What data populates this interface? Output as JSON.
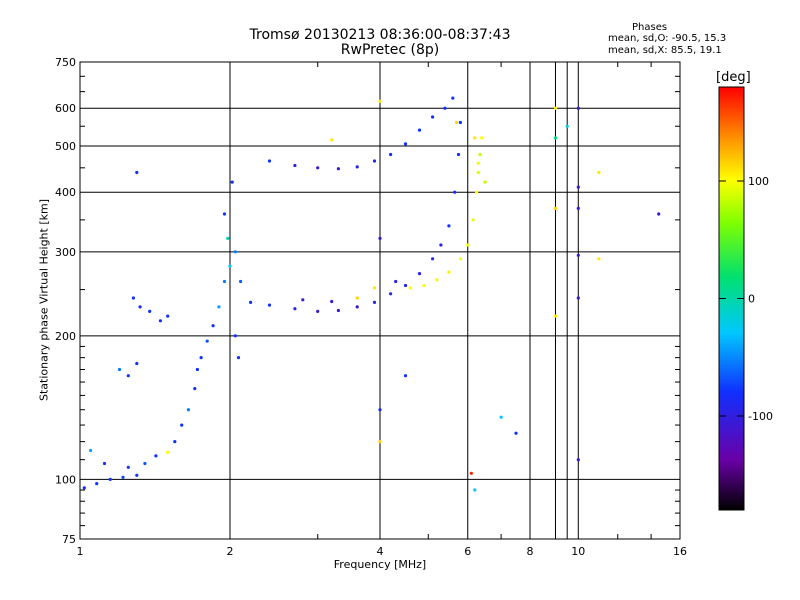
{
  "chart_data": {
    "type": "scatter",
    "title": "Tromsø 20130213 08:36:00-08:37:43",
    "subtitle": "RwPretec (8p)",
    "xlabel": "Frequency [MHz]",
    "ylabel": "Stationary phase Virtual Height [km]",
    "x_scale": "log",
    "y_scale": "log",
    "xlim": [
      1,
      16
    ],
    "ylim": [
      75,
      750
    ],
    "x_ticks": [
      "1",
      "2",
      "4",
      "6",
      "8",
      "10",
      "16"
    ],
    "y_ticks": [
      "750",
      "600",
      "500",
      "400",
      "300",
      "200",
      "100",
      "75"
    ],
    "grid": true,
    "phase_stats": {
      "heading": "Phases",
      "o_line": "mean, sd,O: -90.5, 15.3",
      "x_line": "mean, sd,X:  85.5, 19.1"
    },
    "colorbar": {
      "label": "[deg]",
      "ticks": [
        "100",
        "0",
        "-100"
      ],
      "range": [
        -180,
        180
      ]
    },
    "series": [
      {
        "points": [
          [
            1.02,
            96,
            -100
          ],
          [
            1.08,
            98,
            -100
          ],
          [
            1.15,
            100,
            -100
          ],
          [
            1.22,
            101,
            -95
          ],
          [
            1.3,
            102,
            -100
          ],
          [
            1.05,
            115,
            -70
          ],
          [
            1.12,
            108,
            -100
          ],
          [
            1.25,
            106,
            -100
          ],
          [
            1.35,
            108,
            -90
          ],
          [
            1.42,
            112,
            -100
          ],
          [
            1.5,
            114,
            90
          ],
          [
            1.55,
            120,
            -100
          ],
          [
            1.6,
            130,
            -100
          ],
          [
            1.65,
            140,
            -80
          ],
          [
            1.7,
            155,
            -100
          ],
          [
            1.72,
            170,
            -100
          ],
          [
            1.75,
            180,
            -100
          ],
          [
            1.8,
            195,
            -90
          ],
          [
            1.85,
            210,
            -100
          ],
          [
            1.9,
            230,
            -70
          ],
          [
            1.95,
            260,
            -80
          ],
          [
            2.0,
            280,
            -60
          ],
          [
            1.98,
            320,
            -40
          ],
          [
            1.95,
            360,
            -100
          ],
          [
            2.02,
            420,
            -100
          ],
          [
            2.05,
            300,
            -80
          ],
          [
            2.05,
            200,
            -100
          ],
          [
            2.08,
            180,
            -100
          ],
          [
            2.1,
            260,
            -90
          ],
          [
            1.28,
            240,
            -100
          ],
          [
            1.32,
            230,
            -100
          ],
          [
            1.38,
            225,
            -100
          ],
          [
            1.45,
            215,
            -100
          ],
          [
            1.5,
            220,
            -100
          ],
          [
            1.2,
            170,
            -80
          ],
          [
            1.25,
            165,
            -100
          ],
          [
            1.3,
            175,
            -100
          ],
          [
            2.2,
            235,
            -100
          ],
          [
            2.4,
            232,
            -100
          ],
          [
            2.7,
            228,
            -110
          ],
          [
            3.0,
            225,
            -120
          ],
          [
            3.3,
            226,
            -120
          ],
          [
            3.6,
            230,
            -120
          ],
          [
            3.9,
            235,
            -110
          ],
          [
            4.2,
            245,
            -110
          ],
          [
            4.5,
            255,
            -110
          ],
          [
            4.8,
            270,
            -110
          ],
          [
            5.1,
            290,
            -110
          ],
          [
            5.3,
            310,
            -110
          ],
          [
            5.5,
            340,
            -100
          ],
          [
            5.65,
            400,
            -100
          ],
          [
            5.75,
            480,
            -100
          ],
          [
            5.8,
            560,
            -100
          ],
          [
            2.4,
            465,
            -100
          ],
          [
            2.7,
            455,
            -110
          ],
          [
            3.0,
            450,
            -120
          ],
          [
            3.3,
            448,
            -120
          ],
          [
            3.6,
            452,
            -110
          ],
          [
            3.9,
            465,
            -110
          ],
          [
            4.2,
            480,
            -100
          ],
          [
            4.5,
            505,
            -100
          ],
          [
            4.8,
            540,
            -100
          ],
          [
            5.1,
            575,
            -100
          ],
          [
            5.4,
            600,
            -100
          ],
          [
            5.6,
            630,
            -100
          ],
          [
            2.8,
            238,
            -120
          ],
          [
            3.2,
            236,
            -120
          ],
          [
            3.6,
            240,
            110
          ],
          [
            3.9,
            252,
            100
          ],
          [
            4.3,
            260,
            -110
          ],
          [
            4.6,
            252,
            90
          ],
          [
            4.9,
            255,
            90
          ],
          [
            5.2,
            262,
            95
          ],
          [
            5.5,
            272,
            95
          ],
          [
            5.8,
            290,
            90
          ],
          [
            6.0,
            310,
            80
          ],
          [
            6.15,
            350,
            80
          ],
          [
            6.25,
            400,
            90
          ],
          [
            6.3,
            440,
            70
          ],
          [
            6.35,
            480,
            60
          ],
          [
            6.4,
            520,
            90
          ],
          [
            5.7,
            560,
            110
          ],
          [
            6.2,
            520,
            100
          ],
          [
            6.3,
            460,
            80
          ],
          [
            6.5,
            420,
            60
          ],
          [
            9.0,
            600,
            100
          ],
          [
            9.0,
            520,
            -20
          ],
          [
            9.0,
            370,
            110
          ],
          [
            9.0,
            220,
            100
          ],
          [
            9.5,
            550,
            -50
          ],
          [
            10.0,
            600,
            -120
          ],
          [
            10.0,
            410,
            -120
          ],
          [
            10.0,
            370,
            -120
          ],
          [
            10.0,
            295,
            -120
          ],
          [
            10.0,
            240,
            -120
          ],
          [
            10.0,
            110,
            -120
          ],
          [
            11.0,
            440,
            100
          ],
          [
            11.0,
            290,
            100
          ],
          [
            4.0,
            320,
            -120
          ],
          [
            4.0,
            140,
            -100
          ],
          [
            4.0,
            120,
            110
          ],
          [
            4.5,
            165,
            -100
          ],
          [
            6.1,
            103,
            170
          ],
          [
            6.2,
            95,
            -60
          ],
          [
            7.0,
            135,
            -60
          ],
          [
            7.5,
            125,
            -100
          ],
          [
            14.5,
            360,
            -120
          ],
          [
            1.3,
            440,
            -100
          ],
          [
            4.0,
            620,
            100
          ],
          [
            3.2,
            515,
            100
          ]
        ]
      }
    ]
  }
}
